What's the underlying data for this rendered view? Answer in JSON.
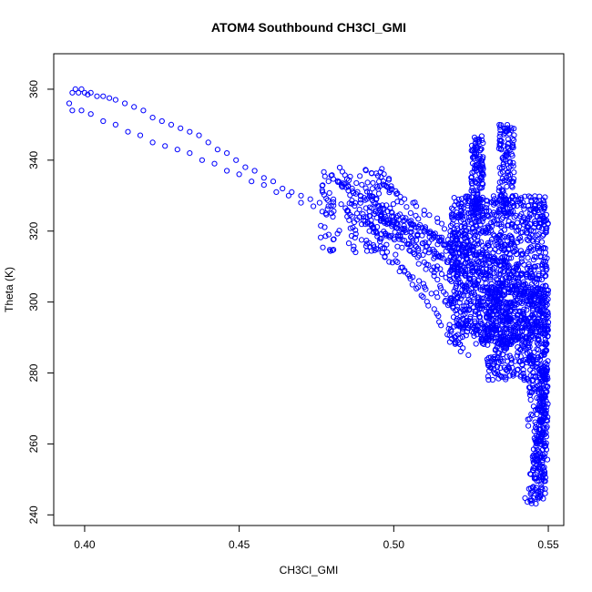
{
  "chart_data": {
    "type": "scatter",
    "title": "ATOM4 Southbound CH3Cl_GMI",
    "xlabel": "CH3Cl_GMI",
    "ylabel": "Theta (K)",
    "xlim": [
      0.39,
      0.555
    ],
    "ylim": [
      237,
      370
    ],
    "xticks": [
      0.4,
      0.45,
      0.5,
      0.55
    ],
    "xtick_labels": [
      "0.40",
      "0.45",
      "0.50",
      "0.55"
    ],
    "yticks": [
      240,
      260,
      280,
      300,
      320,
      340,
      360
    ],
    "ytick_labels": [
      "240",
      "260",
      "280",
      "300",
      "320",
      "340",
      "360"
    ],
    "grid": false,
    "marker": "open-circle",
    "colors": {
      "points": "#0000ff",
      "axes": "#000000",
      "background": "#ffffff"
    },
    "series": [
      {
        "x": [
          0.395,
          0.396,
          0.397,
          0.398,
          0.399,
          0.4,
          0.401,
          0.402,
          0.404,
          0.406,
          0.408,
          0.41,
          0.413,
          0.416,
          0.419,
          0.422,
          0.425,
          0.428,
          0.431,
          0.434,
          0.437,
          0.44,
          0.443,
          0.446,
          0.449,
          0.452,
          0.455,
          0.458,
          0.461,
          0.464,
          0.467,
          0.47,
          0.473,
          0.476,
          0.396,
          0.399,
          0.402,
          0.406,
          0.41,
          0.414,
          0.418,
          0.422,
          0.426,
          0.43,
          0.434,
          0.438,
          0.442,
          0.446,
          0.45,
          0.454,
          0.458,
          0.462,
          0.466,
          0.47,
          0.474,
          0.478
        ],
        "y": [
          356,
          359,
          360,
          359,
          360,
          359,
          358.5,
          359,
          358,
          358,
          357.5,
          357,
          356,
          355,
          354,
          352,
          351,
          350,
          349,
          348,
          347,
          345,
          343,
          342,
          340,
          338,
          337,
          335,
          334,
          332,
          331,
          330,
          329,
          328,
          354,
          354,
          353,
          351,
          350,
          348,
          347,
          345,
          344,
          343,
          342,
          340,
          339,
          337,
          336,
          334,
          333,
          331,
          330,
          328,
          327,
          325
        ]
      }
    ]
  }
}
